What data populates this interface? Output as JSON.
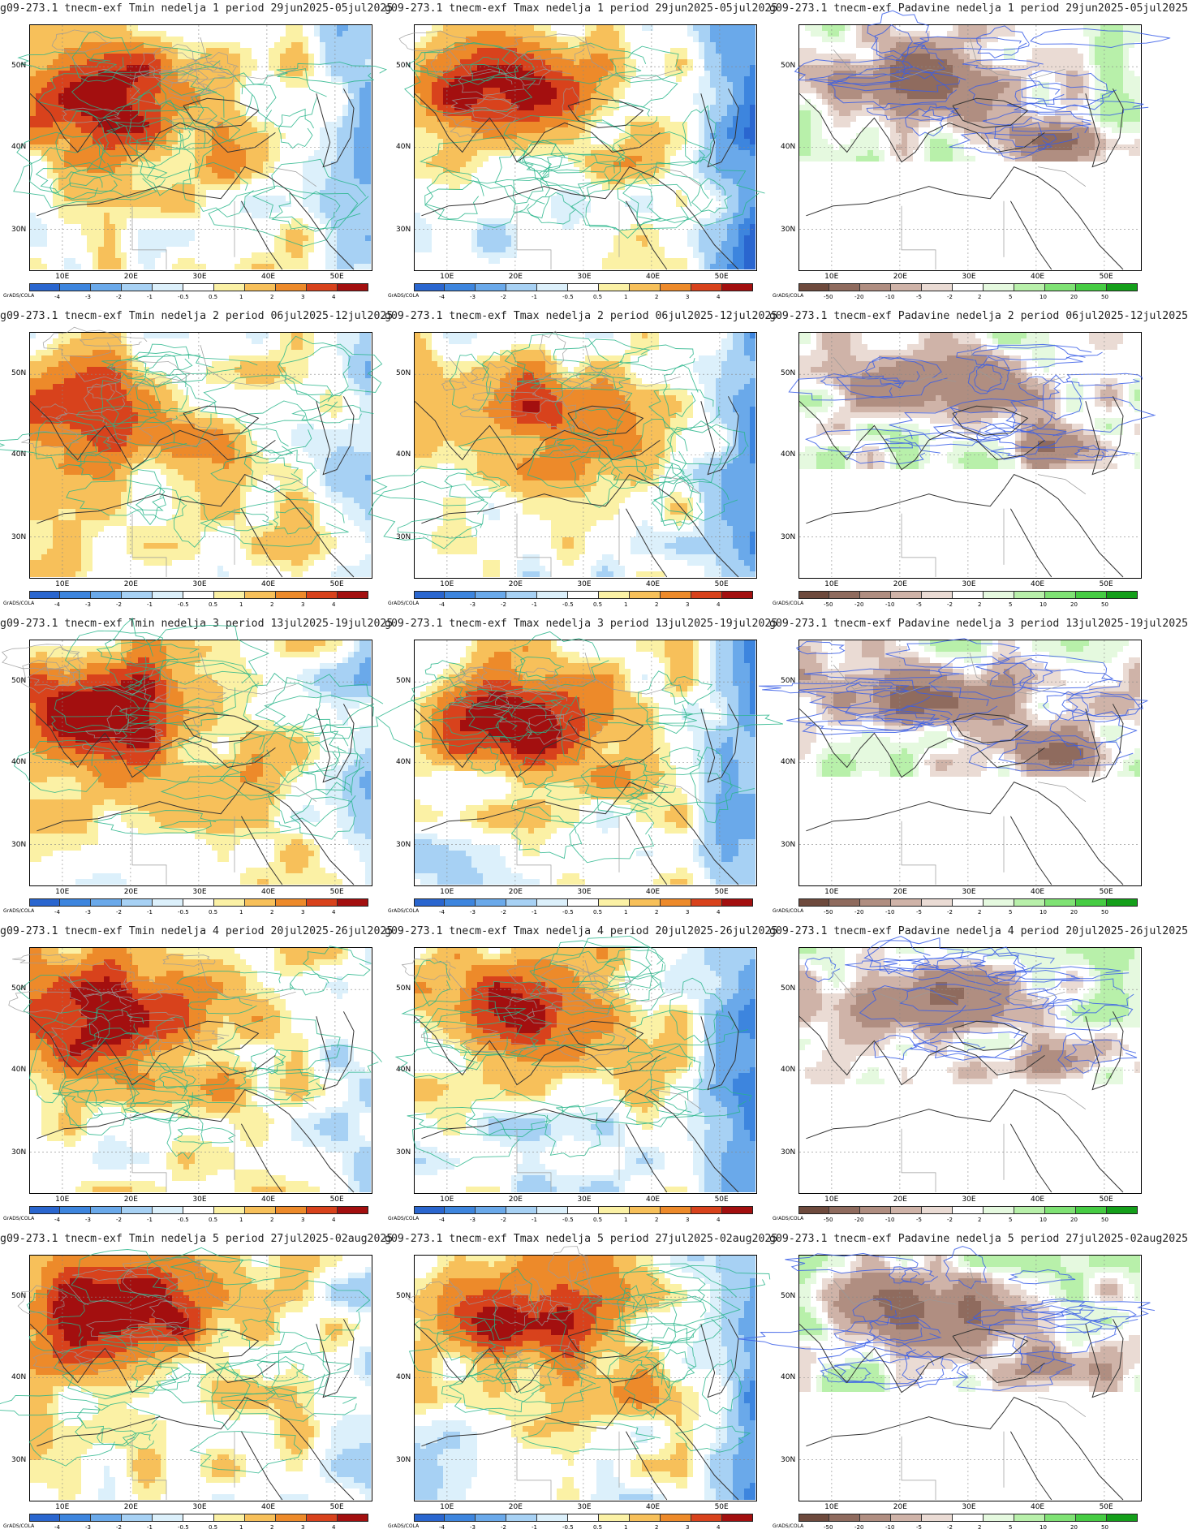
{
  "figure": {
    "credit": "GrADS/COLA",
    "lat_labels": [
      "50N",
      "40N",
      "30N"
    ],
    "lon_labels": [
      "10E",
      "20E",
      "30E",
      "40E",
      "50E"
    ],
    "temp_scale": {
      "ticks": [
        "-4",
        "-3",
        "-2",
        "-1",
        "-0.5",
        "0.5",
        "1",
        "2",
        "3",
        "4"
      ],
      "colors": [
        "#2a66cf",
        "#3d85de",
        "#6aa9ea",
        "#a7d1f4",
        "#dcf0fb",
        "#ffffff",
        "#fbf1a5",
        "#f7c05a",
        "#ed8a2a",
        "#d8421c",
        "#a30f0f"
      ]
    },
    "precip_scale": {
      "ticks": [
        "-50",
        "-20",
        "-10",
        "-5",
        "-2",
        "2",
        "5",
        "10",
        "20",
        "50"
      ],
      "colors": [
        "#6e4a3d",
        "#8f6b5e",
        "#b08e81",
        "#cfb3a8",
        "#eadbd4",
        "#ffffff",
        "#e5f9df",
        "#b8f0aa",
        "#7fe274",
        "#46cc43",
        "#149f1a"
      ]
    }
  },
  "panels": [
    {
      "title": "g09-273.1 tnecm-exf Tmin nedelja 1 period 29jun2025-05jul2025",
      "kind": "temp"
    },
    {
      "title": "g09-273.1 tnecm-exf Tmax nedelja 1 period 29jun2025-05jul2025",
      "kind": "temp"
    },
    {
      "title": "g09-273.1 tnecm-exf Padavine nedelja 1 period 29jun2025-05jul2025",
      "kind": "precip"
    },
    {
      "title": "g09-273.1 tnecm-exf Tmin nedelja 2 period 06jul2025-12jul2025",
      "kind": "temp"
    },
    {
      "title": "g09-273.1 tnecm-exf Tmax nedelja 2 period 06jul2025-12jul2025",
      "kind": "temp"
    },
    {
      "title": "g09-273.1 tnecm-exf Padavine nedelja 2 period 06jul2025-12jul2025",
      "kind": "precip"
    },
    {
      "title": "g09-273.1 tnecm-exf Tmin nedelja 3 period 13jul2025-19jul2025",
      "kind": "temp"
    },
    {
      "title": "g09-273.1 tnecm-exf Tmax nedelja 3 period 13jul2025-19jul2025",
      "kind": "temp"
    },
    {
      "title": "g09-273.1 tnecm-exf Padavine nedelja 3 period 13jul2025-19jul2025",
      "kind": "precip"
    },
    {
      "title": "g09-273.1 tnecm-exf Tmin nedelja 4 period 20jul2025-26jul2025",
      "kind": "temp"
    },
    {
      "title": "g09-273.1 tnecm-exf Tmax nedelja 4 period 20jul2025-26jul2025",
      "kind": "temp"
    },
    {
      "title": "g09-273.1 tnecm-exf Padavine nedelja 4 period 20jul2025-26jul2025",
      "kind": "precip"
    },
    {
      "title": "g09-273.1 tnecm-exf Tmin nedelja 5 period 27jul2025-02aug2025",
      "kind": "temp"
    },
    {
      "title": "g09-273.1 tnecm-exf Tmax nedelja 5 period 27jul2025-02aug2025",
      "kind": "temp"
    },
    {
      "title": "g09-273.1 tnecm-exf Padavine nedelja 5 period 27jul2025-02aug2025",
      "kind": "precip"
    }
  ]
}
